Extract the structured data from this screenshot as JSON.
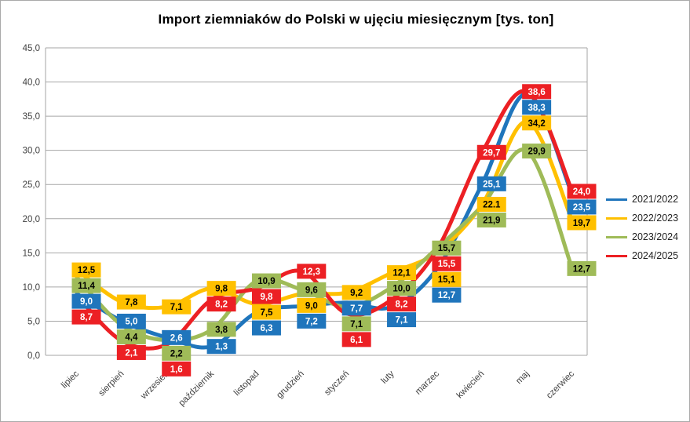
{
  "title": "Import ziemniaków do Polski w ujęciu miesięcznym [tys. ton]",
  "chart_data": {
    "type": "line",
    "title": "Import ziemniaków do Polski w ujęciu miesięcznym [tys. ton]",
    "categories": [
      "lipiec",
      "sierpień",
      "wrzesień",
      "październik",
      "listopad",
      "grudzień",
      "styczeń",
      "luty",
      "marzec",
      "kwiecień",
      "maj",
      "czerwiec"
    ],
    "series": [
      {
        "name": "2021/2022",
        "color": "#1F75BC",
        "label_text_color": "#FFFFFF",
        "values": [
          9.0,
          5.0,
          2.6,
          1.3,
          6.3,
          7.2,
          7.7,
          7.1,
          12.7,
          25.1,
          38.3,
          23.5
        ],
        "labels": [
          "9,0",
          "5,0",
          "2,6",
          "1,3",
          "6,3",
          "7,2",
          "7,7",
          "7,1",
          "12,7",
          "25,1",
          "38,3",
          "23,5"
        ]
      },
      {
        "name": "2022/2023",
        "color": "#FFC000",
        "label_text_color": "#000000",
        "values": [
          12.5,
          7.8,
          7.1,
          9.8,
          7.5,
          9.0,
          9.2,
          12.1,
          15.1,
          22.1,
          34.2,
          19.7
        ],
        "labels": [
          "12,5",
          "7,8",
          "7,1",
          "9,8",
          "7,5",
          "9,0",
          "9,2",
          "12,1",
          "15,1",
          "22.1",
          "34,2",
          "19,7"
        ]
      },
      {
        "name": "2023/2024",
        "color": "#9FBB58",
        "label_text_color": "#000000",
        "values": [
          11.4,
          4.4,
          2.2,
          3.8,
          10.9,
          9.6,
          7.1,
          10.0,
          15.7,
          21.9,
          29.9,
          12.7
        ],
        "labels": [
          "11,4",
          "4,4",
          "2,2",
          "3,8",
          "10,9",
          "9,6",
          "7,1",
          "10,0",
          "15,7",
          "21,9",
          "29,9",
          "12,7"
        ]
      },
      {
        "name": "2024/2025",
        "color": "#EC2024",
        "label_text_color": "#FFFFFF",
        "values": [
          8.7,
          2.1,
          1.6,
          8.2,
          9.8,
          12.3,
          6.1,
          8.2,
          15.5,
          29.7,
          38.6,
          24.0
        ],
        "labels": [
          "8,7",
          "2,1",
          "1,6",
          "8,2",
          "9,8",
          "12,3",
          "6,1",
          "8,2",
          "15,5",
          "29,7",
          "38,6",
          "24,0"
        ]
      }
    ],
    "ylim": [
      0,
      45
    ],
    "ytick_step": 5,
    "ytick_labels": [
      "0,0",
      "5,0",
      "10,0",
      "15,0",
      "20,0",
      "25,0",
      "30,0",
      "35,0",
      "40,0",
      "45,0"
    ],
    "grid": true,
    "legend_position": "right",
    "grid_color": "#A6A6A6",
    "axis_text_color": "#404040"
  }
}
